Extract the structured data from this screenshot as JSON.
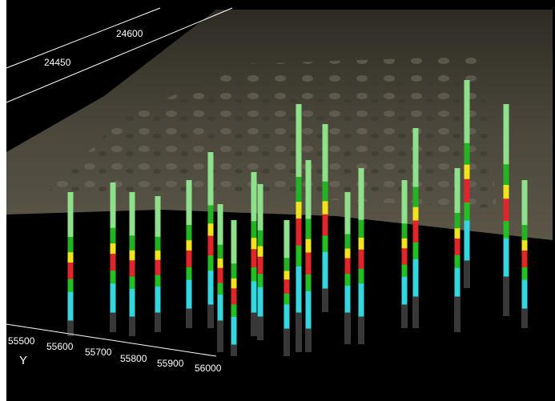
{
  "axes": {
    "top": {
      "labels": [
        24600,
        24450
      ]
    },
    "bottom": {
      "labels": [
        55500,
        55600,
        55700,
        55800,
        55900,
        56000
      ],
      "title": "Y"
    }
  }
}
